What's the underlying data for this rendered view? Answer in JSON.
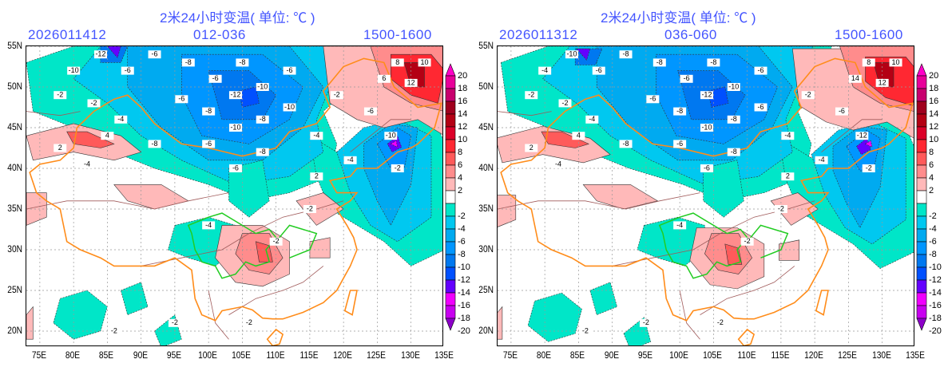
{
  "maps": [
    {
      "title": "2米24小时变温( 单位: ℃ )",
      "init_time": "2026011412",
      "forecast_range": "012-036",
      "valid_time": "1500-1600",
      "contour_labels": [
        "-12",
        "-10",
        "-6",
        "-6",
        "-2",
        "-2",
        "-4",
        "-8",
        "-6",
        "-8",
        "-6",
        "-8",
        "-12",
        "-10",
        "-6",
        "-8",
        "-10",
        "-8",
        "-10",
        "-6",
        "-8",
        "-6",
        "-4",
        "-10",
        "-6",
        "-4",
        "-2",
        "-2",
        "2",
        "-4",
        "4",
        "8",
        "10",
        "12",
        "6",
        "2",
        "-2",
        "-2",
        "-2",
        "-2",
        "-4",
        "-2"
      ]
    },
    {
      "title": "2米24小时变温( 单位: ℃ )",
      "init_time": "2026011312",
      "forecast_range": "036-060",
      "valid_time": "1500-1600",
      "contour_labels": [
        "-10",
        "-4",
        "-6",
        "-8",
        "-2",
        "-2",
        "-4",
        "-8",
        "-6",
        "-8",
        "-6",
        "-8",
        "-12",
        "-10",
        "-6",
        "-8",
        "-10",
        "-8",
        "-6",
        "-6",
        "-8",
        "-6",
        "-4",
        "-12",
        "-6",
        "-4",
        "-2",
        "-2",
        "2",
        "-4",
        "4",
        "8",
        "10",
        "12",
        "14",
        "2",
        "-2",
        "-2",
        "-2",
        "-2",
        "-4",
        "-2"
      ]
    }
  ],
  "lat_labels": [
    "55N",
    "50N",
    "45N",
    "40N",
    "35N",
    "30N",
    "25N",
    "20N"
  ],
  "lon_labels": [
    "75E",
    "80E",
    "85E",
    "90E",
    "95E",
    "100E",
    "105E",
    "110E",
    "115E",
    "120E",
    "125E",
    "130E",
    "135E"
  ],
  "colorbar": {
    "labels": [
      "20",
      "18",
      "16",
      "14",
      "12",
      "10",
      "8",
      "6",
      "4",
      "2",
      "-2",
      "-4",
      "-6",
      "-8",
      "-10",
      "-12",
      "-14",
      "-16",
      "-18",
      "-20"
    ],
    "colors": [
      "#e8009a",
      "#c8006e",
      "#a0001e",
      "#b40014",
      "#dc0028",
      "#ff2832",
      "#ff5a5a",
      "#ff8c8c",
      "#ffb9b9",
      "#ffffff",
      "#00e6c8",
      "#00c8f0",
      "#00aaf0",
      "#0096ff",
      "#0078f0",
      "#0050ff",
      "#6400ff",
      "#f000ff",
      "#c800f0"
    ],
    "top_arrow_color": "#ff00c8",
    "bottom_arrow_color": "#8c00c8"
  }
}
